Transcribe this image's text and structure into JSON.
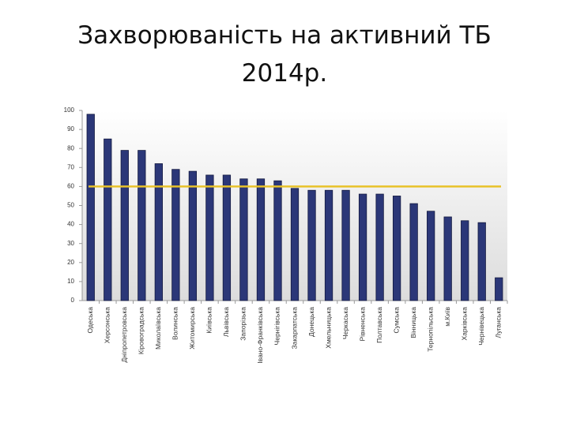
{
  "chart_data": {
    "type": "bar",
    "title": [
      "Захворюваність на активний ТБ",
      "2014р."
    ],
    "categories": [
      "Одеська",
      "Херсонська",
      "Дніпропетровська",
      "Кіровоградська",
      "Миколаївська",
      "Волинська",
      "Житомирська",
      "Київська",
      "Львівська",
      "Запорізька",
      "Івано-Франківська",
      "Чернігівська",
      "Закарпатська",
      "Донецька",
      "Хмельницька",
      "Черкаська",
      "Рівненська",
      "Полтавська",
      "Сумська",
      "Вінницька",
      "Тернопільська",
      "м.Київ",
      "Харківська",
      "Чернівецька",
      "Луганська"
    ],
    "values": [
      98,
      85,
      79,
      79,
      72,
      69,
      68,
      66,
      66,
      64,
      64,
      63,
      59,
      58,
      58,
      58,
      56,
      56,
      55,
      51,
      47,
      44,
      42,
      41,
      12
    ],
    "color": "#2b3778",
    "reference_line": {
      "value": 60,
      "color": "#e8c22a"
    },
    "ylim": [
      0,
      100
    ],
    "yticks": [
      0,
      10,
      20,
      30,
      40,
      50,
      60,
      70,
      80,
      90,
      100
    ]
  }
}
